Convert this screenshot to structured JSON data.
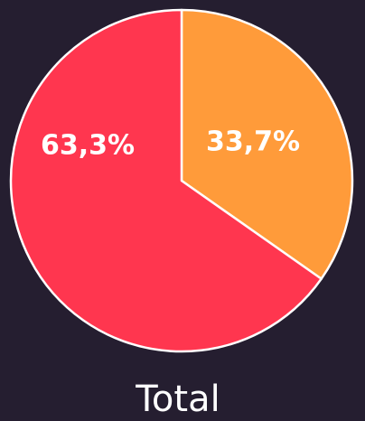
{
  "chart_data": {
    "type": "pie",
    "categories": [
      "",
      ""
    ],
    "values": [
      33.7,
      63.3
    ],
    "labels": [
      "33,7%",
      "63,3%"
    ],
    "colors": [
      "#ff9b3a",
      "#ff364f"
    ],
    "title": "Total",
    "start_angle_deg": 0,
    "direction": "clockwise",
    "legend": "none"
  },
  "style": {
    "background": "#251e30",
    "slice_border": "#ffffff"
  }
}
